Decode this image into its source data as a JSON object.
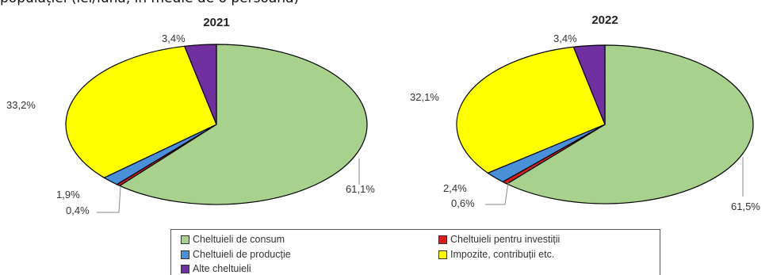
{
  "caption": "populației (lei/lună, în medie de o persoană)",
  "chart_data": [
    {
      "type": "pie",
      "title": "2021",
      "slices": [
        {
          "name": "Cheltuieli de consum",
          "value": 61.1,
          "label": "61,1%",
          "color": "#a9d18e"
        },
        {
          "name": "Cheltuieli pentru investiții",
          "value": 0.4,
          "label": "0,4%",
          "color": "#d62020"
        },
        {
          "name": "Cheltuieli de producție",
          "value": 1.9,
          "label": "1,9%",
          "color": "#4a90d9"
        },
        {
          "name": "Impozite, contribuții etc.",
          "value": 33.2,
          "label": "33,2%",
          "color": "#ffff00"
        },
        {
          "name": "Alte cheltuieli",
          "value": 3.4,
          "label": "3,4%",
          "color": "#7030a0"
        }
      ]
    },
    {
      "type": "pie",
      "title": "2022",
      "slices": [
        {
          "name": "Cheltuieli de consum",
          "value": 61.5,
          "label": "61,5%",
          "color": "#a9d18e"
        },
        {
          "name": "Cheltuieli pentru investiții",
          "value": 0.6,
          "label": "0,6%",
          "color": "#d62020"
        },
        {
          "name": "Cheltuieli de producție",
          "value": 2.4,
          "label": "2,4%",
          "color": "#4a90d9"
        },
        {
          "name": "Impozite, contribuții etc.",
          "value": 32.1,
          "label": "32,1%",
          "color": "#ffff00"
        },
        {
          "name": "Alte cheltuieli",
          "value": 3.4,
          "label": "3,4%",
          "color": "#7030a0"
        }
      ]
    }
  ],
  "legend": [
    {
      "label": "Cheltuieli de consum",
      "color": "#a9d18e"
    },
    {
      "label": "Cheltuieli pentru investiții",
      "color": "#d62020"
    },
    {
      "label": "Cheltuieli de producție",
      "color": "#4a90d9"
    },
    {
      "label": "Impozite, contribuții etc.",
      "color": "#ffff00"
    },
    {
      "label": "Alte cheltuieli",
      "color": "#7030a0"
    }
  ]
}
